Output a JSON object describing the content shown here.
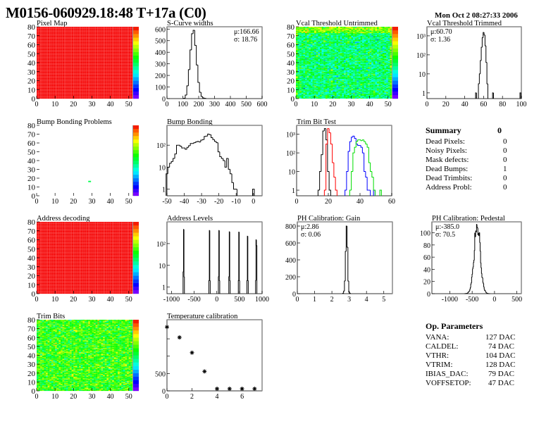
{
  "header": {
    "title": "M0156-060929.18:48 T+17a (C0)",
    "date": "Mon Oct  2 08:27:33 2006"
  },
  "summary": {
    "title": "Summary",
    "total": "0",
    "rows": [
      {
        "label": "Dead Pixels:",
        "value": "0"
      },
      {
        "label": "Noisy Pixels:",
        "value": "0"
      },
      {
        "label": "Mask defects:",
        "value": "0"
      },
      {
        "label": "Dead Bumps:",
        "value": "1"
      },
      {
        "label": "Dead Trimbits:",
        "value": "0"
      },
      {
        "label": "Address Probl:",
        "value": "0"
      }
    ]
  },
  "op_parameters": {
    "title": "Op. Parameters",
    "rows": [
      {
        "label": "VANA:",
        "value": "127 DAC"
      },
      {
        "label": "CALDEL:",
        "value": "74 DAC"
      },
      {
        "label": "VTHR:",
        "value": "104 DAC"
      },
      {
        "label": "VTRIM:",
        "value": "128 DAC"
      },
      {
        "label": "IBIAS_DAC:",
        "value": "79 DAC"
      },
      {
        "label": "VOFFSETOP:",
        "value": "47 DAC"
      }
    ]
  },
  "colors": {
    "palette": "rainbow purple-to-red",
    "trim_series": [
      "#000000",
      "#ff0000",
      "#0000ff",
      "#00dd00"
    ]
  },
  "chart_data": [
    {
      "id": "pixel_map",
      "type": "heatmap",
      "title": "Pixel Map",
      "xlim": [
        0,
        52
      ],
      "ylim": [
        0,
        80
      ],
      "xticks": [
        0,
        10,
        20,
        30,
        40,
        50
      ],
      "yticks": [
        0,
        10,
        20,
        30,
        40,
        50,
        60,
        70,
        80
      ],
      "z_range": [
        0,
        10
      ],
      "fill": "uniform",
      "value": 10
    },
    {
      "id": "scurve",
      "type": "histogram",
      "title": "S-Curve widths",
      "xlim": [
        0,
        600
      ],
      "ylim": [
        0,
        620
      ],
      "log": false,
      "xticks": [
        0,
        100,
        200,
        300,
        400,
        500,
        600
      ],
      "yticks": [
        0,
        100,
        200,
        300,
        400,
        500,
        600
      ],
      "stats": [
        "μ:166.66",
        "σ: 18.76"
      ],
      "stats_pos": "right",
      "bin_width": 10,
      "series": [
        {
          "color": "#000000",
          "bins": [
            [
              110,
              3
            ],
            [
              120,
              30
            ],
            [
              130,
              110
            ],
            [
              140,
              250
            ],
            [
              150,
              420
            ],
            [
              160,
              560
            ],
            [
              170,
              590
            ],
            [
              180,
              460
            ],
            [
              190,
              290
            ],
            [
              200,
              140
            ],
            [
              210,
              55
            ],
            [
              220,
              18
            ],
            [
              230,
              6
            ],
            [
              240,
              2
            ]
          ]
        }
      ]
    },
    {
      "id": "vcal_untrimmed",
      "type": "heatmap",
      "title": "Vcal Threshold Untrimmed",
      "xlim": [
        0,
        52
      ],
      "ylim": [
        0,
        80
      ],
      "xticks": [
        0,
        10,
        20,
        30,
        40,
        50
      ],
      "yticks": [
        0,
        10,
        20,
        30,
        40,
        50,
        60,
        70,
        80
      ],
      "z_range": [
        88,
        134
      ],
      "fill": "noise",
      "value": 110,
      "spread": 4
    },
    {
      "id": "vcal_trimmed",
      "type": "histogram",
      "title": "Vcal Threshold Trimmed",
      "xlim": [
        0,
        100
      ],
      "ylim": [
        0.5,
        3000
      ],
      "log": true,
      "xticks": [
        0,
        20,
        40,
        60,
        80,
        100
      ],
      "yticks": [
        1,
        10,
        100,
        1000
      ],
      "stats": [
        "μ:60.70",
        "σ: 1.36"
      ],
      "stats_pos": "left",
      "bin_width": 1,
      "series": [
        {
          "color": "#000000",
          "bins": [
            [
              52,
              1
            ],
            [
              55,
              3
            ],
            [
              56,
              10
            ],
            [
              57,
              50
            ],
            [
              58,
              250
            ],
            [
              59,
              800
            ],
            [
              60,
              1500
            ],
            [
              61,
              1100
            ],
            [
              62,
              300
            ],
            [
              63,
              40
            ],
            [
              64,
              3
            ],
            [
              70,
              1
            ],
            [
              99,
              1
            ]
          ]
        }
      ]
    },
    {
      "id": "bump_problems",
      "type": "heatmap",
      "title": "Bump Bonding Problems",
      "xlim": [
        0,
        52
      ],
      "ylim": [
        0,
        80
      ],
      "xticks": [
        0,
        10,
        20,
        30,
        40,
        50
      ],
      "yticks": [
        0,
        10,
        20,
        30,
        40,
        50,
        60,
        70,
        80
      ],
      "z_range": [
        0,
        2
      ],
      "fill": "sparse",
      "points": [
        [
          28,
          16,
          1
        ]
      ]
    },
    {
      "id": "bump_bonding",
      "type": "histogram",
      "title": "Bump Bonding",
      "xlim": [
        -50,
        5
      ],
      "ylim": [
        0.5,
        800
      ],
      "log": true,
      "xticks": [
        -50,
        -40,
        -30,
        -20,
        -10,
        0
      ],
      "yticks": [
        1,
        10,
        100
      ],
      "bin_width": 1,
      "series": [
        {
          "color": "#000000",
          "bins": [
            [
              -50,
              5
            ],
            [
              -49,
              10
            ],
            [
              -48,
              15
            ],
            [
              -47,
              18
            ],
            [
              -46,
              25
            ],
            [
              -45,
              40
            ],
            [
              -44,
              100
            ],
            [
              -43,
              100
            ],
            [
              -42,
              90
            ],
            [
              -41,
              75
            ],
            [
              -40,
              75
            ],
            [
              -39,
              65
            ],
            [
              -38,
              80
            ],
            [
              -37,
              95
            ],
            [
              -36,
              120
            ],
            [
              -35,
              120
            ],
            [
              -34,
              130
            ],
            [
              -33,
              140
            ],
            [
              -32,
              150
            ],
            [
              -31,
              140
            ],
            [
              -30,
              170
            ],
            [
              -29,
              180
            ],
            [
              -28,
              250
            ],
            [
              -27,
              260
            ],
            [
              -26,
              320
            ],
            [
              -25,
              300
            ],
            [
              -24,
              220
            ],
            [
              -23,
              180
            ],
            [
              -22,
              150
            ],
            [
              -21,
              130
            ],
            [
              -20,
              50
            ],
            [
              -19,
              30
            ],
            [
              -18,
              25
            ],
            [
              -17,
              20
            ],
            [
              -16,
              10
            ],
            [
              -15,
              25
            ],
            [
              -14,
              8
            ],
            [
              -13,
              5
            ],
            [
              -12,
              2
            ],
            [
              -11,
              1
            ],
            [
              -10,
              1
            ],
            [
              0,
              1
            ]
          ]
        }
      ]
    },
    {
      "id": "trim_bit_test",
      "type": "histogram",
      "title": "Trim Bit Test",
      "xlim": [
        0,
        60
      ],
      "ylim": [
        0.5,
        3000
      ],
      "log": true,
      "xticks": [
        0,
        20,
        40,
        60
      ],
      "yticks": [
        1,
        10,
        100,
        1000
      ],
      "bin_width": 1,
      "series": [
        {
          "color": "#000000",
          "bins": [
            [
              14,
              1
            ],
            [
              15,
              10
            ],
            [
              16,
              80
            ],
            [
              17,
              1500
            ],
            [
              18,
              2000
            ],
            [
              19,
              500
            ],
            [
              20,
              10
            ],
            [
              21,
              1
            ]
          ]
        },
        {
          "color": "#ff0000",
          "bins": [
            [
              18,
              1
            ],
            [
              19,
              300
            ],
            [
              20,
              2000
            ],
            [
              21,
              1200
            ],
            [
              22,
              300
            ],
            [
              23,
              30
            ],
            [
              24,
              5
            ],
            [
              25,
              1
            ]
          ]
        },
        {
          "color": "#0000ff",
          "bins": [
            [
              31,
              1
            ],
            [
              32,
              10
            ],
            [
              33,
              120
            ],
            [
              34,
              400
            ],
            [
              35,
              700
            ],
            [
              36,
              800
            ],
            [
              37,
              600
            ],
            [
              38,
              300
            ],
            [
              39,
              250
            ],
            [
              40,
              250
            ],
            [
              41,
              200
            ],
            [
              42,
              100
            ],
            [
              43,
              10
            ],
            [
              44,
              5
            ],
            [
              45,
              1
            ],
            [
              46,
              1
            ],
            [
              49,
              1
            ]
          ]
        },
        {
          "color": "#00dd00",
          "bins": [
            [
              34,
              1
            ],
            [
              35,
              10
            ],
            [
              36,
              100
            ],
            [
              37,
              200
            ],
            [
              38,
              400
            ],
            [
              39,
              500
            ],
            [
              40,
              500
            ],
            [
              41,
              450
            ],
            [
              42,
              500
            ],
            [
              43,
              400
            ],
            [
              44,
              300
            ],
            [
              45,
              200
            ],
            [
              46,
              30
            ],
            [
              47,
              10
            ],
            [
              48,
              5
            ],
            [
              49,
              1
            ],
            [
              53,
              1
            ]
          ]
        }
      ]
    },
    {
      "id": "address_decoding",
      "type": "heatmap",
      "title": "Address decoding",
      "xlim": [
        0,
        52
      ],
      "ylim": [
        0,
        80
      ],
      "xticks": [
        0,
        10,
        20,
        30,
        40,
        50
      ],
      "yticks": [
        0,
        10,
        20,
        30,
        40,
        50,
        60,
        70,
        80
      ],
      "z_range": [
        0,
        1
      ],
      "fill": "uniform",
      "value": 1
    },
    {
      "id": "address_levels",
      "type": "histogram",
      "title": "Address Levels",
      "xlim": [
        -1100,
        1000
      ],
      "ylim": [
        0.5,
        1000
      ],
      "log": true,
      "xticks": [
        -1000,
        -500,
        0,
        500,
        1000
      ],
      "yticks": [
        1,
        10,
        100
      ],
      "bin_width": 10,
      "series": [
        {
          "color": "#000000",
          "bins": [
            [
              -740,
              5
            ],
            [
              -730,
              450
            ],
            [
              -720,
              3
            ],
            [
              -170,
              2
            ],
            [
              -160,
              400
            ],
            [
              -150,
              2
            ],
            [
              40,
              3
            ],
            [
              50,
              400
            ],
            [
              60,
              2
            ],
            [
              270,
              3
            ],
            [
              280,
              350
            ],
            [
              290,
              2
            ],
            [
              480,
              2
            ],
            [
              490,
              340
            ],
            [
              500,
              2
            ],
            [
              670,
              2
            ],
            [
              680,
              220
            ],
            [
              690,
              2
            ],
            [
              860,
              2
            ],
            [
              870,
              150
            ],
            [
              880,
              80
            ]
          ]
        }
      ]
    },
    {
      "id": "ph_gain",
      "type": "histogram",
      "title": "PH Calibration: Gain",
      "xlim": [
        0,
        5.5
      ],
      "ylim": [
        0,
        850
      ],
      "log": false,
      "xticks": [
        0,
        1,
        2,
        3,
        4,
        5
      ],
      "yticks": [
        0,
        200,
        400,
        600,
        800
      ],
      "stats": [
        "μ:2.86",
        "σ: 0.06"
      ],
      "stats_pos": "left",
      "bin_width": 0.05,
      "series": [
        {
          "color": "#000000",
          "bins": [
            [
              2.65,
              5
            ],
            [
              2.7,
              30
            ],
            [
              2.75,
              150
            ],
            [
              2.8,
              500
            ],
            [
              2.85,
              800
            ],
            [
              2.9,
              550
            ],
            [
              2.95,
              150
            ],
            [
              3.0,
              20
            ],
            [
              3.05,
              3
            ]
          ]
        }
      ]
    },
    {
      "id": "ph_pedestal",
      "type": "histogram",
      "title": "PH Calibration: Pedestal",
      "xlim": [
        -1400,
        600
      ],
      "ylim": [
        0,
        118
      ],
      "log": false,
      "xticks": [
        -1000,
        -500,
        0,
        500
      ],
      "yticks": [
        0,
        20,
        40,
        60,
        80,
        100
      ],
      "stats": [
        "μ:-385.0",
        "σ: 70.5"
      ],
      "stats_pos": "left",
      "bin_width": 10,
      "gaussian": {
        "mean": -385,
        "sigma": 70.5,
        "peak": 105
      },
      "series": [
        {
          "color": "#000000",
          "bins": []
        }
      ]
    },
    {
      "id": "trim_bits",
      "type": "heatmap",
      "title": "Trim Bits",
      "xlim": [
        0,
        52
      ],
      "ylim": [
        0,
        80
      ],
      "xticks": [
        0,
        10,
        20,
        30,
        40,
        50
      ],
      "yticks": [
        0,
        10,
        20,
        30,
        40,
        50,
        60,
        70,
        80
      ],
      "z_range": [
        0,
        16
      ],
      "fill": "noise",
      "value": 9.5,
      "spread": 1.4
    },
    {
      "id": "temperature",
      "type": "scatter",
      "title": "Temperature calibration",
      "xlim": [
        0,
        7.6
      ],
      "ylim": [
        0,
        2050
      ],
      "log": false,
      "xticks": [
        0,
        2,
        4,
        6
      ],
      "yticks": [
        0,
        500
      ],
      "minor_yticks": [
        1000,
        1500
      ],
      "points": [
        [
          0,
          1840
        ],
        [
          1,
          1540
        ],
        [
          2,
          1100
        ],
        [
          3,
          560
        ],
        [
          4,
          60
        ],
        [
          5,
          60
        ],
        [
          6,
          60
        ],
        [
          7,
          60
        ]
      ]
    }
  ]
}
